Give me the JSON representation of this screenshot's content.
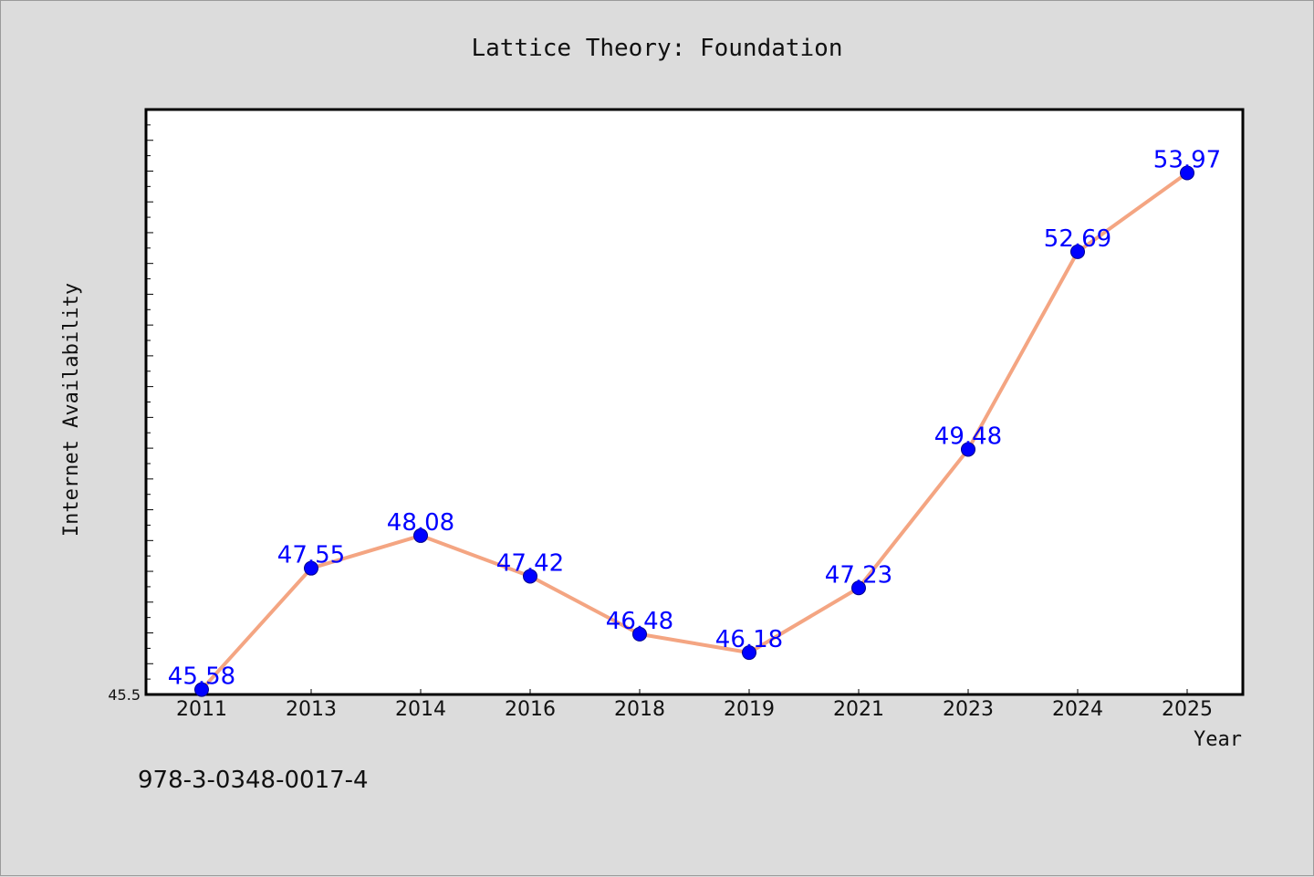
{
  "chart_data": {
    "type": "line",
    "title": "Lattice Theory: Foundation",
    "xlabel": "Year",
    "ylabel": "Internet Availability",
    "categories": [
      "2011",
      "2013",
      "2014",
      "2016",
      "2018",
      "2019",
      "2021",
      "2023",
      "2024",
      "2025"
    ],
    "series": [
      {
        "values": [
          45.58,
          47.55,
          48.08,
          47.42,
          46.48,
          46.18,
          47.23,
          49.48,
          52.69,
          53.97
        ]
      }
    ],
    "data_labels": [
      "45.58",
      "47.55",
      "48.08",
      "47.42",
      "46.48",
      "46.18",
      "47.23",
      "49.48",
      "52.69",
      "53.97"
    ],
    "ylim": [
      45.5,
      55.0
    ],
    "yticks_labeled": [
      "45.5"
    ],
    "grid": false,
    "line_color": "#f4a582",
    "marker_color": "#0000ff",
    "label_color": "#0000ff"
  },
  "footer": {
    "isbn": "978-3-0348-0017-4"
  }
}
